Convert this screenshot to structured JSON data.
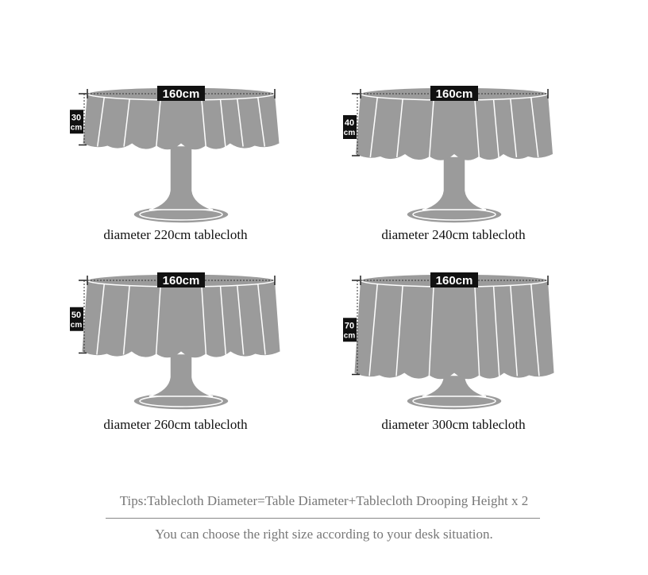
{
  "colors": {
    "cloth": "#9b9b9b",
    "outline": "#ffffff",
    "tag": "#111111",
    "tips_text": "#777777"
  },
  "panels": [
    {
      "table_diameter": "160cm",
      "drop_value": "30",
      "drop_unit": "cm",
      "drop": 30,
      "label": "diameter 220cm tablecloth"
    },
    {
      "table_diameter": "160cm",
      "drop_value": "40",
      "drop_unit": "cm",
      "drop": 40,
      "label": "diameter 240cm tablecloth"
    },
    {
      "table_diameter": "160cm",
      "drop_value": "50",
      "drop_unit": "cm",
      "drop": 50,
      "label": "diameter 260cm tablecloth"
    },
    {
      "table_diameter": "160cm",
      "drop_value": "70",
      "drop_unit": "cm",
      "drop": 70,
      "label": "diameter 300cm tablecloth"
    }
  ],
  "footer": {
    "tips": "Tips:Tablecloth Diameter=Table Diameter+Tablecloth Drooping Height x 2",
    "note": "You can choose the right size according to your desk situation."
  }
}
